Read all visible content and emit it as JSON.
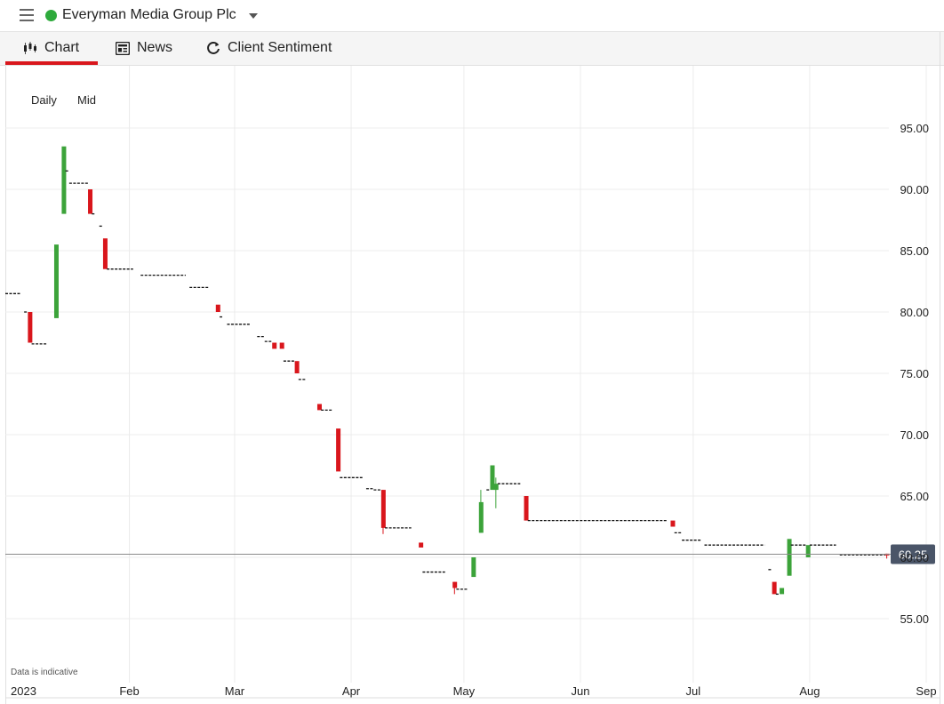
{
  "header": {
    "instrument_name": "Everyman Media Group Plc",
    "status_color": "#2eaa3c",
    "menu_icon": "hamburger-icon",
    "dropdown_icon": "caret-down-icon"
  },
  "tabs": [
    {
      "label": "Chart",
      "icon": "candlestick-icon",
      "active": true
    },
    {
      "label": "News",
      "icon": "newspaper-icon",
      "active": false
    },
    {
      "label": "Client Sentiment",
      "icon": "refresh-icon",
      "active": false
    }
  ],
  "accent_color": "#d9161c",
  "chart_controls": {
    "interval": "Daily",
    "price_type": "Mid"
  },
  "disclaimer": "Data is indicative",
  "chart_data": {
    "type": "candlestick",
    "interval": "Daily",
    "price_type": "Mid",
    "ylim": [
      50.5,
      99
    ],
    "y_ticks": [
      "95.00",
      "90.00",
      "85.00",
      "80.00",
      "75.00",
      "70.00",
      "65.00",
      "60.00",
      "55.00"
    ],
    "y_tick_values": [
      95,
      90,
      85,
      80,
      75,
      70,
      65,
      60,
      55
    ],
    "x_ticks": [
      {
        "label": "2023",
        "date": "2023-01-01"
      },
      {
        "label": "Feb",
        "date": "2023-02-01"
      },
      {
        "label": "Mar",
        "date": "2023-03-01"
      },
      {
        "label": "Apr",
        "date": "2023-04-01"
      },
      {
        "label": "May",
        "date": "2023-05-01"
      },
      {
        "label": "Jun",
        "date": "2023-06-01"
      },
      {
        "label": "Jul",
        "date": "2023-07-01"
      },
      {
        "label": "Aug",
        "date": "2023-08-01"
      },
      {
        "label": "Sep",
        "date": "2023-09-01"
      }
    ],
    "xlim": [
      "2022-12-30",
      "2023-09-01"
    ],
    "last_price": 60.25,
    "last_price_label": "60.25",
    "up_color": "#3ca33a",
    "down_color": "#d9161c",
    "flat_color": "#111111",
    "candles": [
      {
        "start": "2022-12-30",
        "end": "2023-01-03",
        "open": 81.5,
        "close": 81.5
      },
      {
        "start": "2023-01-04",
        "end": "2023-01-05",
        "open": 80,
        "close": 80
      },
      {
        "start": "2023-01-05",
        "end": "2023-01-06",
        "open": 80,
        "close": 77.5
      },
      {
        "start": "2023-01-06",
        "end": "2023-01-10",
        "open": 77.4,
        "close": 77.4
      },
      {
        "start": "2023-01-12",
        "end": "2023-01-13",
        "open": 79.5,
        "close": 85.5
      },
      {
        "start": "2023-01-14",
        "end": "2023-01-15",
        "open": 88,
        "close": 93.5
      },
      {
        "start": "2023-01-15",
        "end": "2023-01-16",
        "open": 91.5,
        "close": 91.5
      },
      {
        "start": "2023-01-16",
        "end": "2023-01-21",
        "open": 90.5,
        "close": 90.5
      },
      {
        "start": "2023-01-21",
        "end": "2023-01-22",
        "open": 90,
        "close": 88
      },
      {
        "start": "2023-01-22",
        "end": "2023-01-23",
        "open": 88,
        "close": 88
      },
      {
        "start": "2023-01-24",
        "end": "2023-01-25",
        "open": 87,
        "close": 87
      },
      {
        "start": "2023-01-25",
        "end": "2023-01-26",
        "open": 86,
        "close": 83.5
      },
      {
        "start": "2023-01-26",
        "end": "2023-02-02",
        "open": 83.5,
        "close": 83.5
      },
      {
        "start": "2023-02-04",
        "end": "2023-02-16",
        "open": 83,
        "close": 83
      },
      {
        "start": "2023-02-17",
        "end": "2023-02-22",
        "open": 82,
        "close": 82
      },
      {
        "start": "2023-02-24",
        "end": "2023-02-25",
        "open": 80.6,
        "close": 80
      },
      {
        "start": "2023-02-25",
        "end": "2023-02-26",
        "open": 79.6,
        "close": 79.6
      },
      {
        "start": "2023-02-27",
        "end": "2023-03-05",
        "open": 79,
        "close": 79
      },
      {
        "start": "2023-03-07",
        "end": "2023-03-09",
        "open": 78,
        "close": 78
      },
      {
        "start": "2023-03-09",
        "end": "2023-03-11",
        "open": 77.6,
        "close": 77.6
      },
      {
        "start": "2023-03-11",
        "end": "2023-03-12",
        "open": 77.5,
        "close": 77
      },
      {
        "start": "2023-03-13",
        "end": "2023-03-14",
        "open": 77.5,
        "close": 77
      },
      {
        "start": "2023-03-14",
        "end": "2023-03-17",
        "open": 76,
        "close": 76
      },
      {
        "start": "2023-03-17",
        "end": "2023-03-18",
        "open": 76,
        "close": 75
      },
      {
        "start": "2023-03-18",
        "end": "2023-03-20",
        "open": 74.5,
        "close": 74.5
      },
      {
        "start": "2023-03-23",
        "end": "2023-03-24",
        "open": 72.5,
        "close": 72
      },
      {
        "start": "2023-03-24",
        "end": "2023-03-27",
        "open": 72,
        "close": 72
      },
      {
        "start": "2023-03-28",
        "end": "2023-03-29",
        "open": 70.5,
        "close": 67
      },
      {
        "start": "2023-03-29",
        "end": "2023-04-04",
        "open": 66.5,
        "close": 66.5
      },
      {
        "start": "2023-04-05",
        "end": "2023-04-07",
        "open": 65.6,
        "close": 65.6
      },
      {
        "start": "2023-04-07",
        "end": "2023-04-09",
        "open": 65.5,
        "close": 65.5
      },
      {
        "start": "2023-04-09",
        "end": "2023-04-10",
        "open": 65.5,
        "close": 62.4,
        "low": 61.9
      },
      {
        "start": "2023-04-10",
        "end": "2023-04-17",
        "open": 62.4,
        "close": 62.4
      },
      {
        "start": "2023-04-19",
        "end": "2023-04-20",
        "open": 61.2,
        "close": 60.8
      },
      {
        "start": "2023-04-20",
        "end": "2023-04-26",
        "open": 58.8,
        "close": 58.8
      },
      {
        "start": "2023-04-28",
        "end": "2023-04-29",
        "open": 58,
        "close": 57.5,
        "low": 57
      },
      {
        "start": "2023-04-29",
        "end": "2023-05-02",
        "open": 57.4,
        "close": 57.4
      },
      {
        "start": "2023-05-03",
        "end": "2023-05-04",
        "open": 58.4,
        "close": 60
      },
      {
        "start": "2023-05-05",
        "end": "2023-05-06",
        "open": 62,
        "close": 64.5,
        "high": 65.5
      },
      {
        "start": "2023-05-07",
        "end": "2023-05-08",
        "open": 65.5,
        "close": 65.5
      },
      {
        "start": "2023-05-08",
        "end": "2023-05-09",
        "open": 65.5,
        "close": 67.5
      },
      {
        "start": "2023-05-09",
        "end": "2023-05-10",
        "open": 65.5,
        "close": 66,
        "high": 66.5,
        "low": 64
      },
      {
        "start": "2023-05-10",
        "end": "2023-05-16",
        "open": 66,
        "close": 66
      },
      {
        "start": "2023-05-17",
        "end": "2023-05-18",
        "open": 65,
        "close": 63
      },
      {
        "start": "2023-05-18",
        "end": "2023-06-24",
        "open": 63,
        "close": 63
      },
      {
        "start": "2023-06-25",
        "end": "2023-06-26",
        "open": 63,
        "close": 62.5
      },
      {
        "start": "2023-06-26",
        "end": "2023-06-28",
        "open": 62,
        "close": 62
      },
      {
        "start": "2023-06-28",
        "end": "2023-07-03",
        "open": 61.4,
        "close": 61.4
      },
      {
        "start": "2023-07-04",
        "end": "2023-07-20",
        "open": 61,
        "close": 61
      },
      {
        "start": "2023-07-21",
        "end": "2023-07-22",
        "open": 59,
        "close": 59
      },
      {
        "start": "2023-07-22",
        "end": "2023-07-23",
        "open": 58,
        "close": 57
      },
      {
        "start": "2023-07-23",
        "end": "2023-07-24",
        "open": 57,
        "close": 57
      },
      {
        "start": "2023-07-24",
        "end": "2023-07-25",
        "open": 57,
        "close": 57.5
      },
      {
        "start": "2023-07-26",
        "end": "2023-07-27",
        "open": 58.5,
        "close": 61.5
      },
      {
        "start": "2023-07-27",
        "end": "2023-07-31",
        "open": 61,
        "close": 61
      },
      {
        "start": "2023-07-31",
        "end": "2023-08-01",
        "open": 60,
        "close": 61
      },
      {
        "start": "2023-08-01",
        "end": "2023-08-08",
        "open": 61,
        "close": 61
      },
      {
        "start": "2023-08-09",
        "end": "2023-08-21",
        "open": 60.2,
        "close": 60.2
      },
      {
        "start": "2023-08-21",
        "end": "2023-08-22",
        "open": 60.3,
        "close": 60.25,
        "low": 59.9
      }
    ]
  }
}
